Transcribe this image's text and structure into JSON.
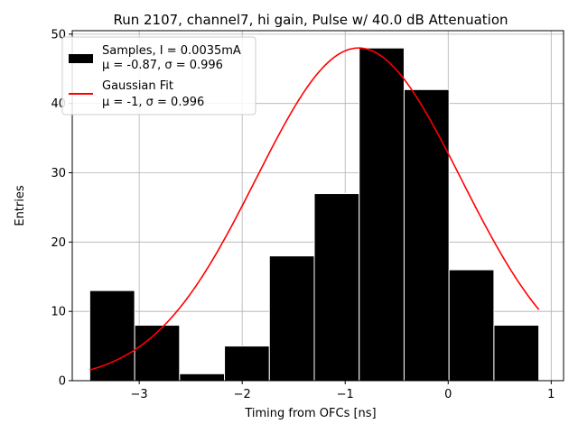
{
  "chart_data": {
    "type": "bar",
    "title": "Run 2107, channel7, hi gain, Pulse w/ 40.0 dB Attenuation",
    "xlabel": "Timing from OFCs [ns]",
    "ylabel": "Entries",
    "xlim": [
      -3.65,
      1.12
    ],
    "ylim": [
      0,
      50.5
    ],
    "xticks": [
      -3,
      -2,
      -1,
      0,
      1
    ],
    "xtick_labels": [
      "−3",
      "−2",
      "−1",
      "0",
      "1"
    ],
    "yticks": [
      0,
      10,
      20,
      30,
      40,
      50
    ],
    "ytick_labels": [
      "0",
      "10",
      "20",
      "30",
      "40",
      "50"
    ],
    "grid": true,
    "legend_position": "upper-left",
    "histogram": {
      "name": "Samples, I = 0.0035mA",
      "stats": "μ = -0.87, σ = 0.996",
      "color": "#000000",
      "bin_edges": [
        -3.48,
        -3.044,
        -2.608,
        -2.172,
        -1.736,
        -1.3,
        -0.864,
        -0.428,
        0.008,
        0.444,
        0.88
      ],
      "counts": [
        13,
        8,
        1,
        5,
        18,
        27,
        48,
        42,
        16,
        8
      ]
    },
    "fit": {
      "name": "Gaussian Fit",
      "stats": "μ = -1, σ = 0.996",
      "color": "#ff0000",
      "mu": -0.87,
      "sigma": 0.996,
      "amplitude": 48,
      "x_range": [
        -3.48,
        0.88
      ]
    }
  }
}
